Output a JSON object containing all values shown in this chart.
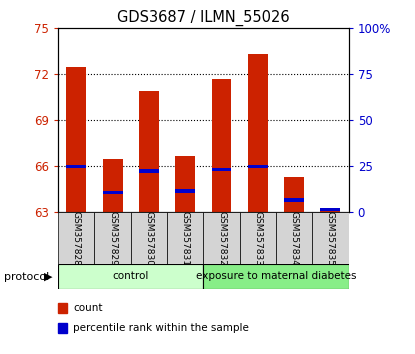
{
  "title": "GDS3687 / ILMN_55026",
  "samples": [
    "GSM357828",
    "GSM357829",
    "GSM357830",
    "GSM357831",
    "GSM357832",
    "GSM357833",
    "GSM357834",
    "GSM357835"
  ],
  "count_values": [
    72.5,
    66.5,
    70.9,
    66.7,
    71.7,
    73.3,
    65.3,
    63.2
  ],
  "percentile_values": [
    66.0,
    64.3,
    65.7,
    64.4,
    65.8,
    66.0,
    63.8,
    63.2
  ],
  "base": 63,
  "ylim_left": [
    63,
    75
  ],
  "ylim_right": [
    0,
    100
  ],
  "yticks_left": [
    63,
    66,
    69,
    72,
    75
  ],
  "yticks_right": [
    0,
    25,
    50,
    75,
    100
  ],
  "ytick_labels_right": [
    "0",
    "25",
    "50",
    "75",
    "100%"
  ],
  "left_color": "#cc2200",
  "right_color": "#0000cc",
  "bar_color_red": "#cc2200",
  "bar_color_blue": "#0000cc",
  "groups": [
    {
      "label": "control",
      "start": 0,
      "end": 4,
      "color": "#ccffcc"
    },
    {
      "label": "exposure to maternal diabetes",
      "start": 4,
      "end": 8,
      "color": "#88ee88"
    }
  ],
  "protocol_label": "protocol",
  "bar_width": 0.55,
  "legend_items": [
    {
      "label": "count",
      "color": "#cc2200"
    },
    {
      "label": "percentile rank within the sample",
      "color": "#0000cc"
    }
  ]
}
